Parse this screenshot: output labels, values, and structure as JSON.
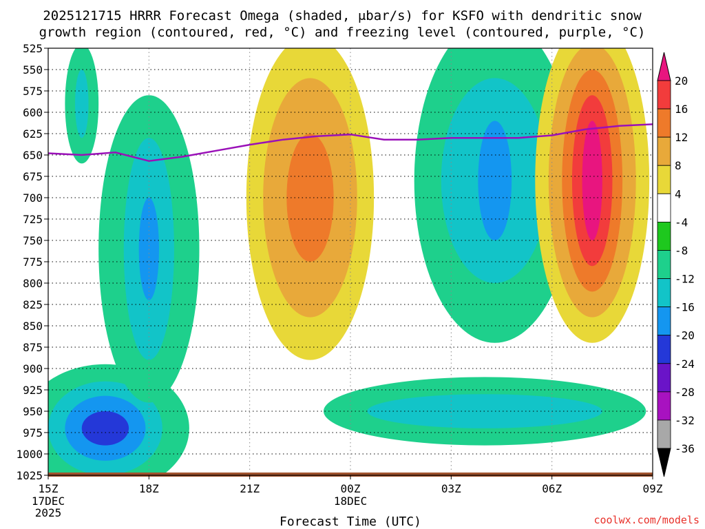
{
  "chart_data": {
    "type": "heatmap",
    "title_line1": "2025121715 HRRR Forecast Omega (shaded, μbar/s) for KSFO with dendritic snow",
    "title_line2": "growth region (contoured, red, °C) and freezing level (contoured, purple, °C)",
    "xlabel": "Forecast Time (UTC)",
    "credit": "coolwx.com/models",
    "x_ticks": [
      {
        "hour": 0,
        "label": "15Z",
        "sub": [
          "17DEC",
          "2025"
        ]
      },
      {
        "hour": 3,
        "label": "18Z",
        "sub": []
      },
      {
        "hour": 6,
        "label": "21Z",
        "sub": []
      },
      {
        "hour": 9,
        "label": "00Z",
        "sub": [
          "18DEC"
        ]
      },
      {
        "hour": 12,
        "label": "03Z",
        "sub": []
      },
      {
        "hour": 15,
        "label": "06Z",
        "sub": []
      },
      {
        "hour": 18,
        "label": "09Z",
        "sub": []
      }
    ],
    "x_range_hours": [
      0,
      18
    ],
    "y_ticks": [
      525,
      550,
      575,
      600,
      625,
      650,
      675,
      700,
      725,
      750,
      775,
      800,
      825,
      850,
      875,
      900,
      925,
      950,
      975,
      1000,
      1025
    ],
    "y_range_hpa": [
      525,
      1025
    ],
    "colorbar": {
      "labels": [
        "20",
        "16",
        "12",
        "8",
        "4",
        "-4",
        "-8",
        "-12",
        "-16",
        "-20",
        "-24",
        "-28",
        "-32",
        "-36"
      ],
      "levels": [
        {
          "from": 20,
          "to": 24,
          "color": "#e8157f"
        },
        {
          "from": 16,
          "to": 20,
          "color": "#f23c3c"
        },
        {
          "from": 12,
          "to": 16,
          "color": "#ee7a2a"
        },
        {
          "from": 8,
          "to": 12,
          "color": "#e8a93a"
        },
        {
          "from": 4,
          "to": 8,
          "color": "#e8d838"
        },
        {
          "from": -4,
          "to": 4,
          "color": "#ffffff"
        },
        {
          "from": -8,
          "to": -4,
          "color": "#1ec81e"
        },
        {
          "from": -12,
          "to": -8,
          "color": "#1ed08c"
        },
        {
          "from": -16,
          "to": -12,
          "color": "#12c4c8"
        },
        {
          "from": -20,
          "to": -16,
          "color": "#1496f0"
        },
        {
          "from": -24,
          "to": -20,
          "color": "#2438d8"
        },
        {
          "from": -28,
          "to": -24,
          "color": "#6a14c8"
        },
        {
          "from": -32,
          "to": -28,
          "color": "#a812c0"
        },
        {
          "from": -36,
          "to": -32,
          "color": "#a8a8a8"
        }
      ]
    },
    "freezing_level": {
      "color": "#9a10b8",
      "points": [
        [
          0,
          648
        ],
        [
          1,
          650
        ],
        [
          2,
          647
        ],
        [
          3,
          657
        ],
        [
          4,
          652
        ],
        [
          5,
          645
        ],
        [
          6,
          638
        ],
        [
          7,
          632
        ],
        [
          8,
          628
        ],
        [
          9,
          626
        ],
        [
          10,
          632
        ],
        [
          11,
          632
        ],
        [
          12,
          630
        ],
        [
          13,
          630
        ],
        [
          14,
          630
        ],
        [
          15,
          627
        ],
        [
          16,
          620
        ],
        [
          17,
          616
        ],
        [
          18,
          614
        ]
      ]
    },
    "omega_features": [
      {
        "name": "upward-core-early-low-levels",
        "cx": 1.7,
        "cy": 970,
        "vals": [
          -8,
          -12,
          -16,
          -20
        ],
        "rx": [
          2.5,
          1.7,
          1.2,
          0.7
        ],
        "ry": [
          75,
          55,
          38,
          20
        ]
      },
      {
        "name": "upward-column-near-18z",
        "cx": 3.0,
        "cy": 760,
        "vals": [
          -8,
          -12,
          -16
        ],
        "rx": [
          1.5,
          0.75,
          0.3
        ],
        "ry": [
          180,
          130,
          60
        ]
      },
      {
        "name": "upward-strip-early-top",
        "cx": 1.0,
        "cy": 590,
        "vals": [
          -8,
          -12
        ],
        "rx": [
          0.5,
          0.2
        ],
        "ry": [
          70,
          40
        ]
      },
      {
        "name": "downward-column-22z",
        "cx": 7.8,
        "cy": 700,
        "vals": [
          4,
          8,
          12
        ],
        "rx": [
          1.9,
          1.4,
          0.7
        ],
        "ry": [
          190,
          140,
          75
        ]
      },
      {
        "name": "upward-column-03z-04z",
        "cx": 13.3,
        "cy": 680,
        "vals": [
          -8,
          -12,
          -16
        ],
        "rx": [
          2.4,
          1.6,
          0.5
        ],
        "ry": [
          190,
          120,
          70
        ]
      },
      {
        "name": "upward-band-low-levels-after-00z",
        "cx": 13.0,
        "cy": 950,
        "vals": [
          -8,
          -12
        ],
        "rx": [
          4.8,
          3.5
        ],
        "ry": [
          40,
          20
        ]
      },
      {
        "name": "downward-column-07z",
        "cx": 16.2,
        "cy": 680,
        "vals": [
          4,
          8,
          12,
          16,
          20
        ],
        "rx": [
          1.7,
          1.3,
          0.9,
          0.6,
          0.3
        ],
        "ry": [
          190,
          160,
          130,
          100,
          70
        ]
      }
    ]
  }
}
